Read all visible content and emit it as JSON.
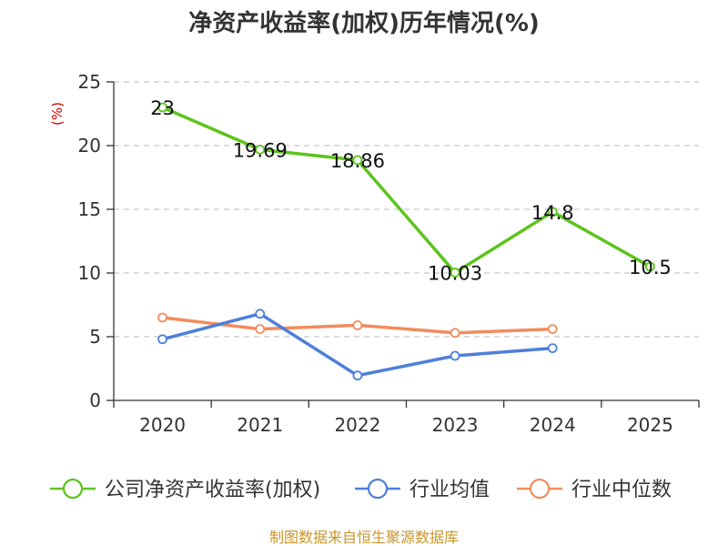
{
  "title": "净资产收益率(加权)历年情况(%)",
  "source": "制图数据来自恒生聚源数据库",
  "chart_data": {
    "type": "line",
    "title": "净资产收益率(加权)历年情况(%)",
    "ylabel": "(%)",
    "xlabel": "",
    "categories": [
      "2020",
      "2021",
      "2022",
      "2023",
      "2024",
      "2025"
    ],
    "ylim": [
      0,
      25
    ],
    "yticks": [
      0,
      5,
      10,
      15,
      20,
      25
    ],
    "grid": true,
    "legend_position": "bottom",
    "series": [
      {
        "name": "公司净资产收益率(加权)",
        "color": "#5cc41c",
        "values": [
          23,
          19.69,
          18.86,
          10.03,
          14.8,
          10.5
        ],
        "labels": [
          "23",
          "19.69",
          "18.86",
          "10.03",
          "14.8",
          "10.5"
        ]
      },
      {
        "name": "行业均值",
        "color": "#4e7fd9",
        "values": [
          4.8,
          6.8,
          1.95,
          3.5,
          4.1,
          null
        ]
      },
      {
        "name": "行业中位数",
        "color": "#f28c5c",
        "values": [
          6.5,
          5.6,
          5.9,
          5.3,
          5.6,
          null
        ]
      }
    ]
  }
}
